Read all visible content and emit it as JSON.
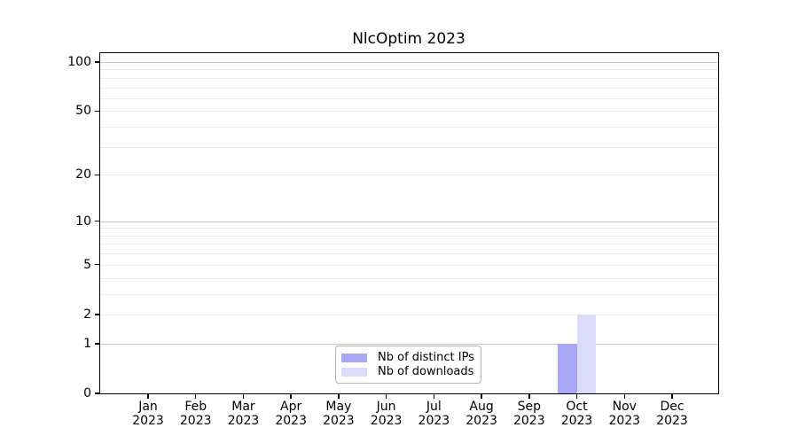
{
  "chart": {
    "title": "NlcOptim 2023"
  },
  "chart_data": {
    "type": "bar",
    "title": "NlcOptim 2023",
    "categories": [
      "Jan 2023",
      "Feb 2023",
      "Mar 2023",
      "Apr 2023",
      "May 2023",
      "Jun 2023",
      "Jul 2023",
      "Aug 2023",
      "Sep 2023",
      "Oct 2023",
      "Nov 2023",
      "Dec 2023"
    ],
    "series": [
      {
        "name": "Nb of distinct IPs",
        "color": "#a8a8f7",
        "values": [
          0,
          0,
          0,
          0,
          0,
          0,
          0,
          0,
          0,
          1,
          0,
          0
        ]
      },
      {
        "name": "Nb of downloads",
        "color": "#dbdcfa",
        "values": [
          0,
          0,
          0,
          0,
          0,
          0,
          0,
          0,
          0,
          2,
          0,
          0
        ]
      }
    ],
    "xlabel": "",
    "ylabel": "",
    "y_scale": "log1p",
    "ylim": [
      0,
      115
    ],
    "yticks": [
      0,
      1,
      2,
      5,
      10,
      20,
      50,
      100
    ],
    "grid": {
      "on": true,
      "minor_values": [
        2,
        3,
        4,
        5,
        6,
        7,
        8,
        9,
        20,
        30,
        40,
        50,
        60,
        70,
        80,
        90
      ],
      "major_values": [
        1,
        10,
        100
      ],
      "minor_color": "#eaeaea",
      "major_color": "#c4c4c4"
    },
    "legend_position": "inside lower center",
    "annotations": []
  }
}
